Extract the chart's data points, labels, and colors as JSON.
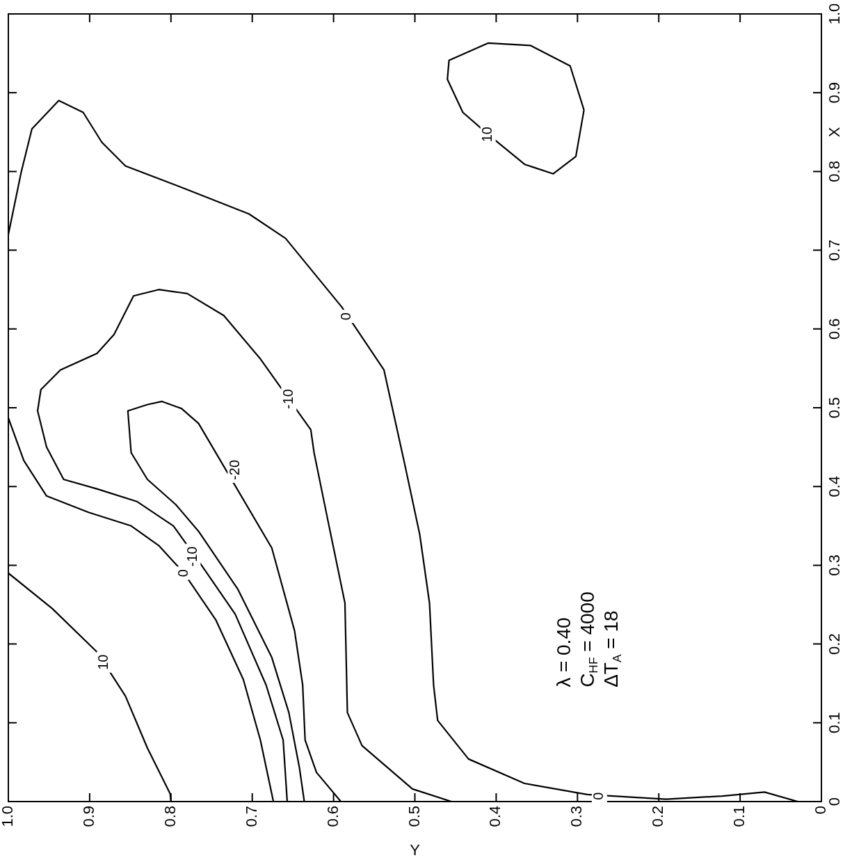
{
  "chart_data": {
    "type": "line",
    "xlabel": "Y",
    "ylabel": "X",
    "marker": "none",
    "legend": false,
    "xlim": [
      1.0,
      0
    ],
    "xticks": [
      {
        "value": 1.0,
        "label": "1.0"
      },
      0.9,
      0.8,
      0.7,
      0.6,
      0.5,
      0.4,
      0.3,
      0.2,
      0.1,
      0
    ],
    "ylim": [
      0,
      1.0
    ],
    "yticks": [
      0,
      0.1,
      0.2,
      0.3,
      0.4,
      0.5,
      0.6,
      0.7,
      0.8,
      0.9,
      {
        "value": 1.0,
        "label": "1.0"
      }
    ],
    "series": [
      {
        "color": "#000000",
        "x": [
          1.0,
          0.946,
          0.891,
          0.856,
          0.829,
          0.801,
          0.8
        ],
        "values": [
          0.29,
          0.245,
          0.19,
          0.134,
          0.068,
          0.01,
          0
        ]
      },
      {
        "color": "#000000",
        "x": [
          1.0,
          0.984,
          0.971,
          0.938,
          0.908,
          0.885,
          0.856,
          0.78,
          0.704,
          0.659,
          0.59,
          0.538,
          0.512,
          0.494,
          0.482,
          0.477,
          0.472,
          0.434,
          0.365,
          0.288,
          0.191,
          0.122,
          0.07,
          0.029
        ],
        "values": [
          0.72,
          0.8,
          0.854,
          0.89,
          0.875,
          0.837,
          0.807,
          0.777,
          0.746,
          0.715,
          0.628,
          0.548,
          0.426,
          0.339,
          0.252,
          0.148,
          0.103,
          0.054,
          0.023,
          0.009,
          0.003,
          0.007,
          0.012,
          0
        ]
      },
      {
        "color": "#000000",
        "x": [
          1.0,
          0.981,
          0.953,
          0.901,
          0.849,
          0.815,
          0.784,
          0.745,
          0.711,
          0.69,
          0.674
        ],
        "values": [
          0.487,
          0.433,
          0.388,
          0.367,
          0.35,
          0.325,
          0.29,
          0.231,
          0.155,
          0.078,
          0
        ]
      },
      {
        "color": "#000000",
        "x": [
          0.657,
          0.662,
          0.683,
          0.721,
          0.763,
          0.797,
          0.842,
          0.891,
          0.932,
          0.953,
          0.964,
          0.96,
          0.936,
          0.891,
          0.87,
          0.846,
          0.815,
          0.78,
          0.735,
          0.69,
          0.628,
          0.624,
          0.607,
          0.586,
          0.583,
          0.565,
          0.503,
          0.455
        ],
        "values": [
          0,
          0.078,
          0.148,
          0.238,
          0.301,
          0.35,
          0.381,
          0.397,
          0.409,
          0.45,
          0.496,
          0.523,
          0.548,
          0.569,
          0.593,
          0.642,
          0.65,
          0.645,
          0.617,
          0.562,
          0.472,
          0.443,
          0.357,
          0.252,
          0.113,
          0.071,
          0.016,
          0
        ]
      },
      {
        "color": "#000000",
        "x": [
          0.636,
          0.642,
          0.655,
          0.676,
          0.718,
          0.766,
          0.794,
          0.829,
          0.849,
          0.853,
          0.829,
          0.811,
          0.787,
          0.766,
          0.676,
          0.648,
          0.638,
          0.635,
          0.621,
          0.591
        ],
        "values": [
          0,
          0.043,
          0.113,
          0.183,
          0.27,
          0.343,
          0.377,
          0.409,
          0.443,
          0.496,
          0.504,
          0.508,
          0.499,
          0.48,
          0.322,
          0.217,
          0.148,
          0.078,
          0.037,
          0
        ]
      },
      {
        "color": "#000000",
        "x": [
          0.41,
          0.441,
          0.46,
          0.458,
          0.41,
          0.358,
          0.309,
          0.292
        ],
        "values": [
          0.847,
          0.875,
          0.917,
          0.941,
          0.963,
          0.96,
          0.934,
          0.878
        ]
      },
      {
        "color": "#000000",
        "x": [
          0.292,
          0.302,
          0.33,
          0.365,
          0.41
        ],
        "values": [
          0.878,
          0.819,
          0.797,
          0.809,
          0.847
        ]
      }
    ],
    "annotations": [
      {
        "text": "10",
        "x": 0.882,
        "y": 0.177
      },
      {
        "text": "0",
        "x": 0.584,
        "y": 0.616
      },
      {
        "text": "-10",
        "x": 0.655,
        "y": 0.511
      },
      {
        "text": "-20",
        "x": 0.721,
        "y": 0.421
      },
      {
        "text": "0",
        "x": 0.784,
        "y": 0.29
      },
      {
        "text": "-10",
        "x": 0.773,
        "y": 0.311
      },
      {
        "text": "10",
        "x": 0.41,
        "y": 0.847
      },
      {
        "text": "0",
        "x": 0.273,
        "y": 0.007
      },
      "λ = 0.40",
      "C$_{HF}$ = 4000",
      "ΔT$_{A}$ = 18"
    ]
  }
}
